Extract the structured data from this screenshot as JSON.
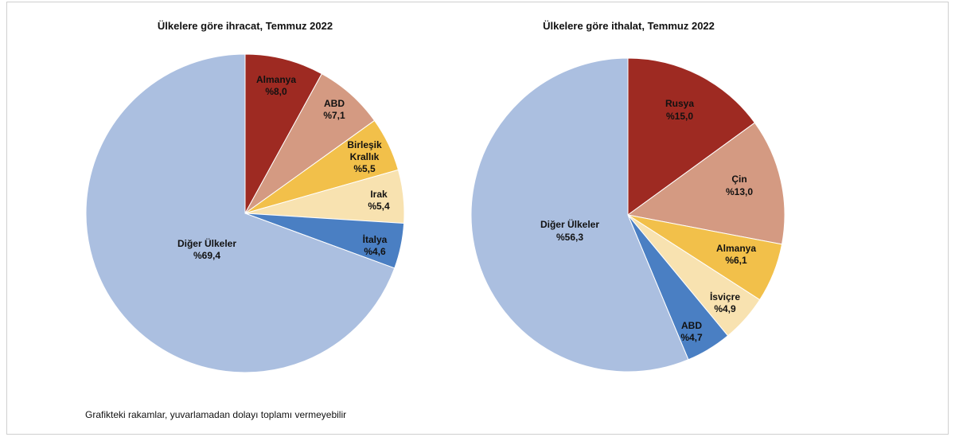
{
  "footnote": "Grafikteki rakamlar, yuvarlamadan dolayı toplamı vermeyebilir",
  "chart_data": [
    {
      "type": "pie",
      "title": "Ülkelere göre ihracat, Temmuz 2022",
      "unit": "%",
      "slices": [
        {
          "label": "Almanya",
          "value_text": "%8,0",
          "value": 8.0,
          "color": "#9e2a22"
        },
        {
          "label": "ABD",
          "value_text": "%7,1",
          "value": 7.1,
          "color": "#d49a82"
        },
        {
          "label": "Birleşik Krallık",
          "value_text": "%5,5",
          "value": 5.5,
          "color": "#f2c04a"
        },
        {
          "label": "Irak",
          "value_text": "%5,4",
          "value": 5.4,
          "color": "#f8e2b0"
        },
        {
          "label": "İtalya",
          "value_text": "%4,6",
          "value": 4.6,
          "color": "#4a7fc3"
        },
        {
          "label": "Diğer Ülkeler",
          "value_text": "%69,4",
          "value": 69.4,
          "color": "#abbfe0"
        }
      ]
    },
    {
      "type": "pie",
      "title": "Ülkelere göre ithalat, Temmuz 2022",
      "unit": "%",
      "slices": [
        {
          "label": "Rusya",
          "value_text": "%15,0",
          "value": 15.0,
          "color": "#9e2a22"
        },
        {
          "label": "Çin",
          "value_text": "%13,0",
          "value": 13.0,
          "color": "#d49a82"
        },
        {
          "label": "Almanya",
          "value_text": "%6,1",
          "value": 6.1,
          "color": "#f2c04a"
        },
        {
          "label": "İsviçre",
          "value_text": "%4,9",
          "value": 4.9,
          "color": "#f8e2b0"
        },
        {
          "label": "ABD",
          "value_text": "%4,7",
          "value": 4.7,
          "color": "#4a7fc3"
        },
        {
          "label": "Diğer Ülkeler",
          "value_text": "%56,3",
          "value": 56.3,
          "color": "#abbfe0"
        }
      ]
    }
  ]
}
